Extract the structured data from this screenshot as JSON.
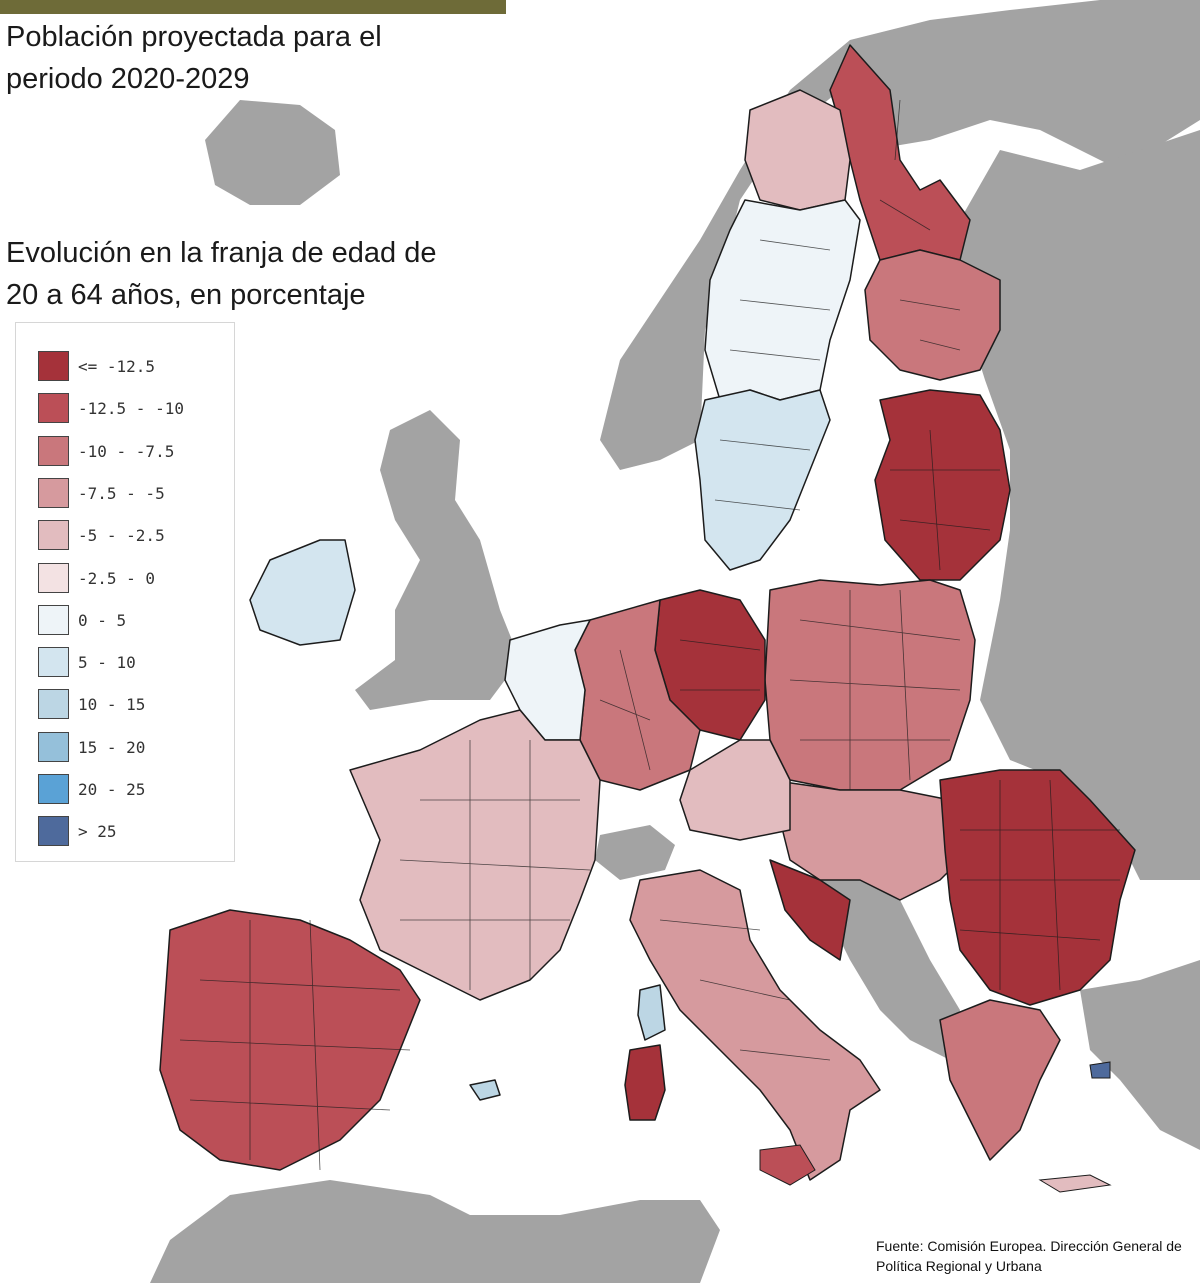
{
  "title": "Población proyectada para el periodo 2020-2029",
  "subtitle": "Evolución en la franja de edad de 20 a 64 años, en porcentaje",
  "legend": {
    "items": [
      {
        "label": "<= -12.5",
        "color": "#a5323a"
      },
      {
        "label": "-12.5 - -10",
        "color": "#bb4f57"
      },
      {
        "label": "-10 - -7.5",
        "color": "#c9777c"
      },
      {
        "label": "-7.5 - -5",
        "color": "#d69a9e"
      },
      {
        "label": "-5 - -2.5",
        "color": "#e2bcbf"
      },
      {
        "label": "-2.5 - 0",
        "color": "#f3e2e3"
      },
      {
        "label": "0 - 5",
        "color": "#eef4f8"
      },
      {
        "label": "5 - 10",
        "color": "#d3e5ef"
      },
      {
        "label": "10 - 15",
        "color": "#bcd6e4"
      },
      {
        "label": "15 - 20",
        "color": "#95c0da"
      },
      {
        "label": "20 - 25",
        "color": "#5aa2d6"
      },
      {
        "label": "> 25",
        "color": "#4e6a9c"
      }
    ]
  },
  "source": "Fuente: Comisión Europea. Dirección General de Política Regional y Urbana",
  "colors": {
    "land_non_eu": "#a3a3a3",
    "sea": "#ffffff",
    "accent_bar": "#6e6b38",
    "border": "#1c1c1c"
  },
  "regions": [
    {
      "name": "Finland north",
      "cls": 1
    },
    {
      "name": "Finland central",
      "cls": 2
    },
    {
      "name": "Sweden north",
      "cls": 4
    },
    {
      "name": "Sweden",
      "cls": 6
    },
    {
      "name": "Sweden south",
      "cls": 7
    },
    {
      "name": "Baltics",
      "cls": 0
    },
    {
      "name": "Poland",
      "cls": 2
    },
    {
      "name": "Germany east",
      "cls": 0
    },
    {
      "name": "Germany",
      "cls": 2
    },
    {
      "name": "Benelux",
      "cls": 6
    },
    {
      "name": "France",
      "cls": 4
    },
    {
      "name": "Ireland",
      "cls": 7
    },
    {
      "name": "Iberia",
      "cls": 1
    },
    {
      "name": "Italy",
      "cls": 3
    },
    {
      "name": "Balkans",
      "cls": 3
    },
    {
      "name": "Romania & Bulgaria",
      "cls": 0
    },
    {
      "name": "Greece",
      "cls": 2
    },
    {
      "name": "Sardinia",
      "cls": 0
    },
    {
      "name": "Corsica",
      "cls": 8
    },
    {
      "name": "Balearic Islands",
      "cls": 8
    },
    {
      "name": "Croatia",
      "cls": 0
    },
    {
      "name": "Austria & Czechia",
      "cls": 4
    }
  ]
}
